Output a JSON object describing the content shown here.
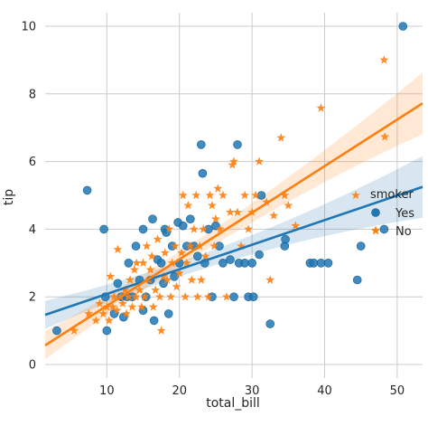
{
  "chart_data": {
    "type": "scatter",
    "title": "",
    "xlabel": "total_bill",
    "ylabel": "tip",
    "xlim": [
      1.5,
      53.5
    ],
    "ylim": [
      -0.4,
      10.4
    ],
    "xticks": [
      10,
      20,
      30,
      40,
      50
    ],
    "yticks": [
      0,
      2,
      4,
      6,
      8,
      10
    ],
    "grid": true,
    "legend": {
      "title": "smoker",
      "placement": "center-right"
    },
    "series": [
      {
        "name": "Yes",
        "color": "#1f77b4",
        "marker": "circle",
        "regression": {
          "intercept": 1.36,
          "slope": 0.0727
        },
        "points": [
          [
            3.1,
            1.0
          ],
          [
            7.3,
            5.15
          ],
          [
            10.0,
            1.0
          ],
          [
            9.6,
            4.0
          ],
          [
            9.8,
            2.0
          ],
          [
            11.0,
            1.5
          ],
          [
            11.5,
            2.4
          ],
          [
            12.0,
            2.0
          ],
          [
            12.3,
            1.4
          ],
          [
            12.8,
            2.0
          ],
          [
            13.0,
            3.0
          ],
          [
            13.5,
            2.0
          ],
          [
            14.0,
            3.5
          ],
          [
            14.5,
            2.5
          ],
          [
            15.0,
            1.6
          ],
          [
            15.0,
            4.0
          ],
          [
            15.4,
            2.0
          ],
          [
            16.0,
            2.5
          ],
          [
            16.3,
            4.3
          ],
          [
            16.5,
            1.3
          ],
          [
            17.0,
            3.1
          ],
          [
            17.5,
            3.0
          ],
          [
            17.8,
            2.4
          ],
          [
            18.0,
            4.0
          ],
          [
            18.2,
            3.9
          ],
          [
            18.5,
            1.5
          ],
          [
            19.0,
            3.5
          ],
          [
            19.3,
            2.6
          ],
          [
            19.8,
            4.2
          ],
          [
            20.0,
            3.0
          ],
          [
            20.5,
            4.1
          ],
          [
            21.0,
            3.5
          ],
          [
            21.5,
            4.3
          ],
          [
            22.0,
            3.5
          ],
          [
            22.5,
            3.2
          ],
          [
            23.0,
            6.5
          ],
          [
            23.2,
            5.65
          ],
          [
            23.5,
            3.0
          ],
          [
            24.0,
            4.0
          ],
          [
            24.5,
            2.0
          ],
          [
            25.0,
            4.1
          ],
          [
            25.5,
            3.5
          ],
          [
            26.0,
            3.0
          ],
          [
            27.0,
            3.1
          ],
          [
            27.5,
            2.0
          ],
          [
            28.0,
            6.5
          ],
          [
            28.2,
            3.0
          ],
          [
            29.0,
            3.0
          ],
          [
            29.5,
            2.0
          ],
          [
            30.0,
            3.0
          ],
          [
            30.2,
            2.0
          ],
          [
            31.0,
            3.25
          ],
          [
            31.3,
            5.0
          ],
          [
            32.5,
            1.2
          ],
          [
            34.5,
            3.5
          ],
          [
            34.6,
            3.7
          ],
          [
            38.0,
            3.0
          ],
          [
            38.5,
            3.0
          ],
          [
            39.5,
            3.0
          ],
          [
            40.5,
            3.0
          ],
          [
            45.0,
            3.5
          ],
          [
            44.5,
            2.5
          ],
          [
            48.2,
            4.0
          ],
          [
            50.8,
            10.0
          ]
        ]
      },
      {
        "name": "No",
        "color": "#ff7f0e",
        "marker": "star",
        "regression": {
          "intercept": 0.36,
          "slope": 0.1376
        },
        "points": [
          [
            5.5,
            1.0
          ],
          [
            7.5,
            1.5
          ],
          [
            8.5,
            1.3
          ],
          [
            9.0,
            1.8
          ],
          [
            9.5,
            1.5
          ],
          [
            10.0,
            1.7
          ],
          [
            10.3,
            1.3
          ],
          [
            10.5,
            2.6
          ],
          [
            10.8,
            1.7
          ],
          [
            11.0,
            2.0
          ],
          [
            11.4,
            1.6
          ],
          [
            11.5,
            3.4
          ],
          [
            11.9,
            2.0
          ],
          [
            12.2,
            1.8
          ],
          [
            12.5,
            2.2
          ],
          [
            12.7,
            1.5
          ],
          [
            13.0,
            2.0
          ],
          [
            13.2,
            2.5
          ],
          [
            13.5,
            1.7
          ],
          [
            13.8,
            2.8
          ],
          [
            14.0,
            2.0
          ],
          [
            14.1,
            3.0
          ],
          [
            14.5,
            2.2
          ],
          [
            14.8,
            1.7
          ],
          [
            15.0,
            3.0
          ],
          [
            15.2,
            2.0
          ],
          [
            15.5,
            3.5
          ],
          [
            15.8,
            2.5
          ],
          [
            16.0,
            2.8
          ],
          [
            16.2,
            3.2
          ],
          [
            16.4,
            1.7
          ],
          [
            16.7,
            2.2
          ],
          [
            17.0,
            3.7
          ],
          [
            17.3,
            2.0
          ],
          [
            17.5,
            1.0
          ],
          [
            17.8,
            2.6
          ],
          [
            18.0,
            3.3
          ],
          [
            18.3,
            2.5
          ],
          [
            18.6,
            4.0
          ],
          [
            18.8,
            2.0
          ],
          [
            19.0,
            3.0
          ],
          [
            19.4,
            3.5
          ],
          [
            19.6,
            2.3
          ],
          [
            20.0,
            2.7
          ],
          [
            20.3,
            3.3
          ],
          [
            20.5,
            5.0
          ],
          [
            20.8,
            2.0
          ],
          [
            21.0,
            3.0
          ],
          [
            21.2,
            4.7
          ],
          [
            21.5,
            3.5
          ],
          [
            21.7,
            2.5
          ],
          [
            22.0,
            4.0
          ],
          [
            22.3,
            5.0
          ],
          [
            22.5,
            2.0
          ],
          [
            22.8,
            3.5
          ],
          [
            23.0,
            2.5
          ],
          [
            23.3,
            4.0
          ],
          [
            23.6,
            3.2
          ],
          [
            24.0,
            2.0
          ],
          [
            24.2,
            5.0
          ],
          [
            24.5,
            4.7
          ],
          [
            24.8,
            3.5
          ],
          [
            25.0,
            4.3
          ],
          [
            25.3,
            5.2
          ],
          [
            25.6,
            4.0
          ],
          [
            26.0,
            5.0
          ],
          [
            26.5,
            2.0
          ],
          [
            27.0,
            4.5
          ],
          [
            27.3,
            5.9
          ],
          [
            27.5,
            6.0
          ],
          [
            28.0,
            4.5
          ],
          [
            28.5,
            3.5
          ],
          [
            29.0,
            5.0
          ],
          [
            29.5,
            4.0
          ],
          [
            30.0,
            4.5
          ],
          [
            30.5,
            5.0
          ],
          [
            31.0,
            6.0
          ],
          [
            32.0,
            4.8
          ],
          [
            32.5,
            2.5
          ],
          [
            33.0,
            4.4
          ],
          [
            34.0,
            6.7
          ],
          [
            34.5,
            5.0
          ],
          [
            35.0,
            4.7
          ],
          [
            36.0,
            4.1
          ],
          [
            39.5,
            7.58
          ],
          [
            44.3,
            5.0
          ],
          [
            48.2,
            9.0
          ],
          [
            48.3,
            6.73
          ]
        ]
      }
    ]
  }
}
